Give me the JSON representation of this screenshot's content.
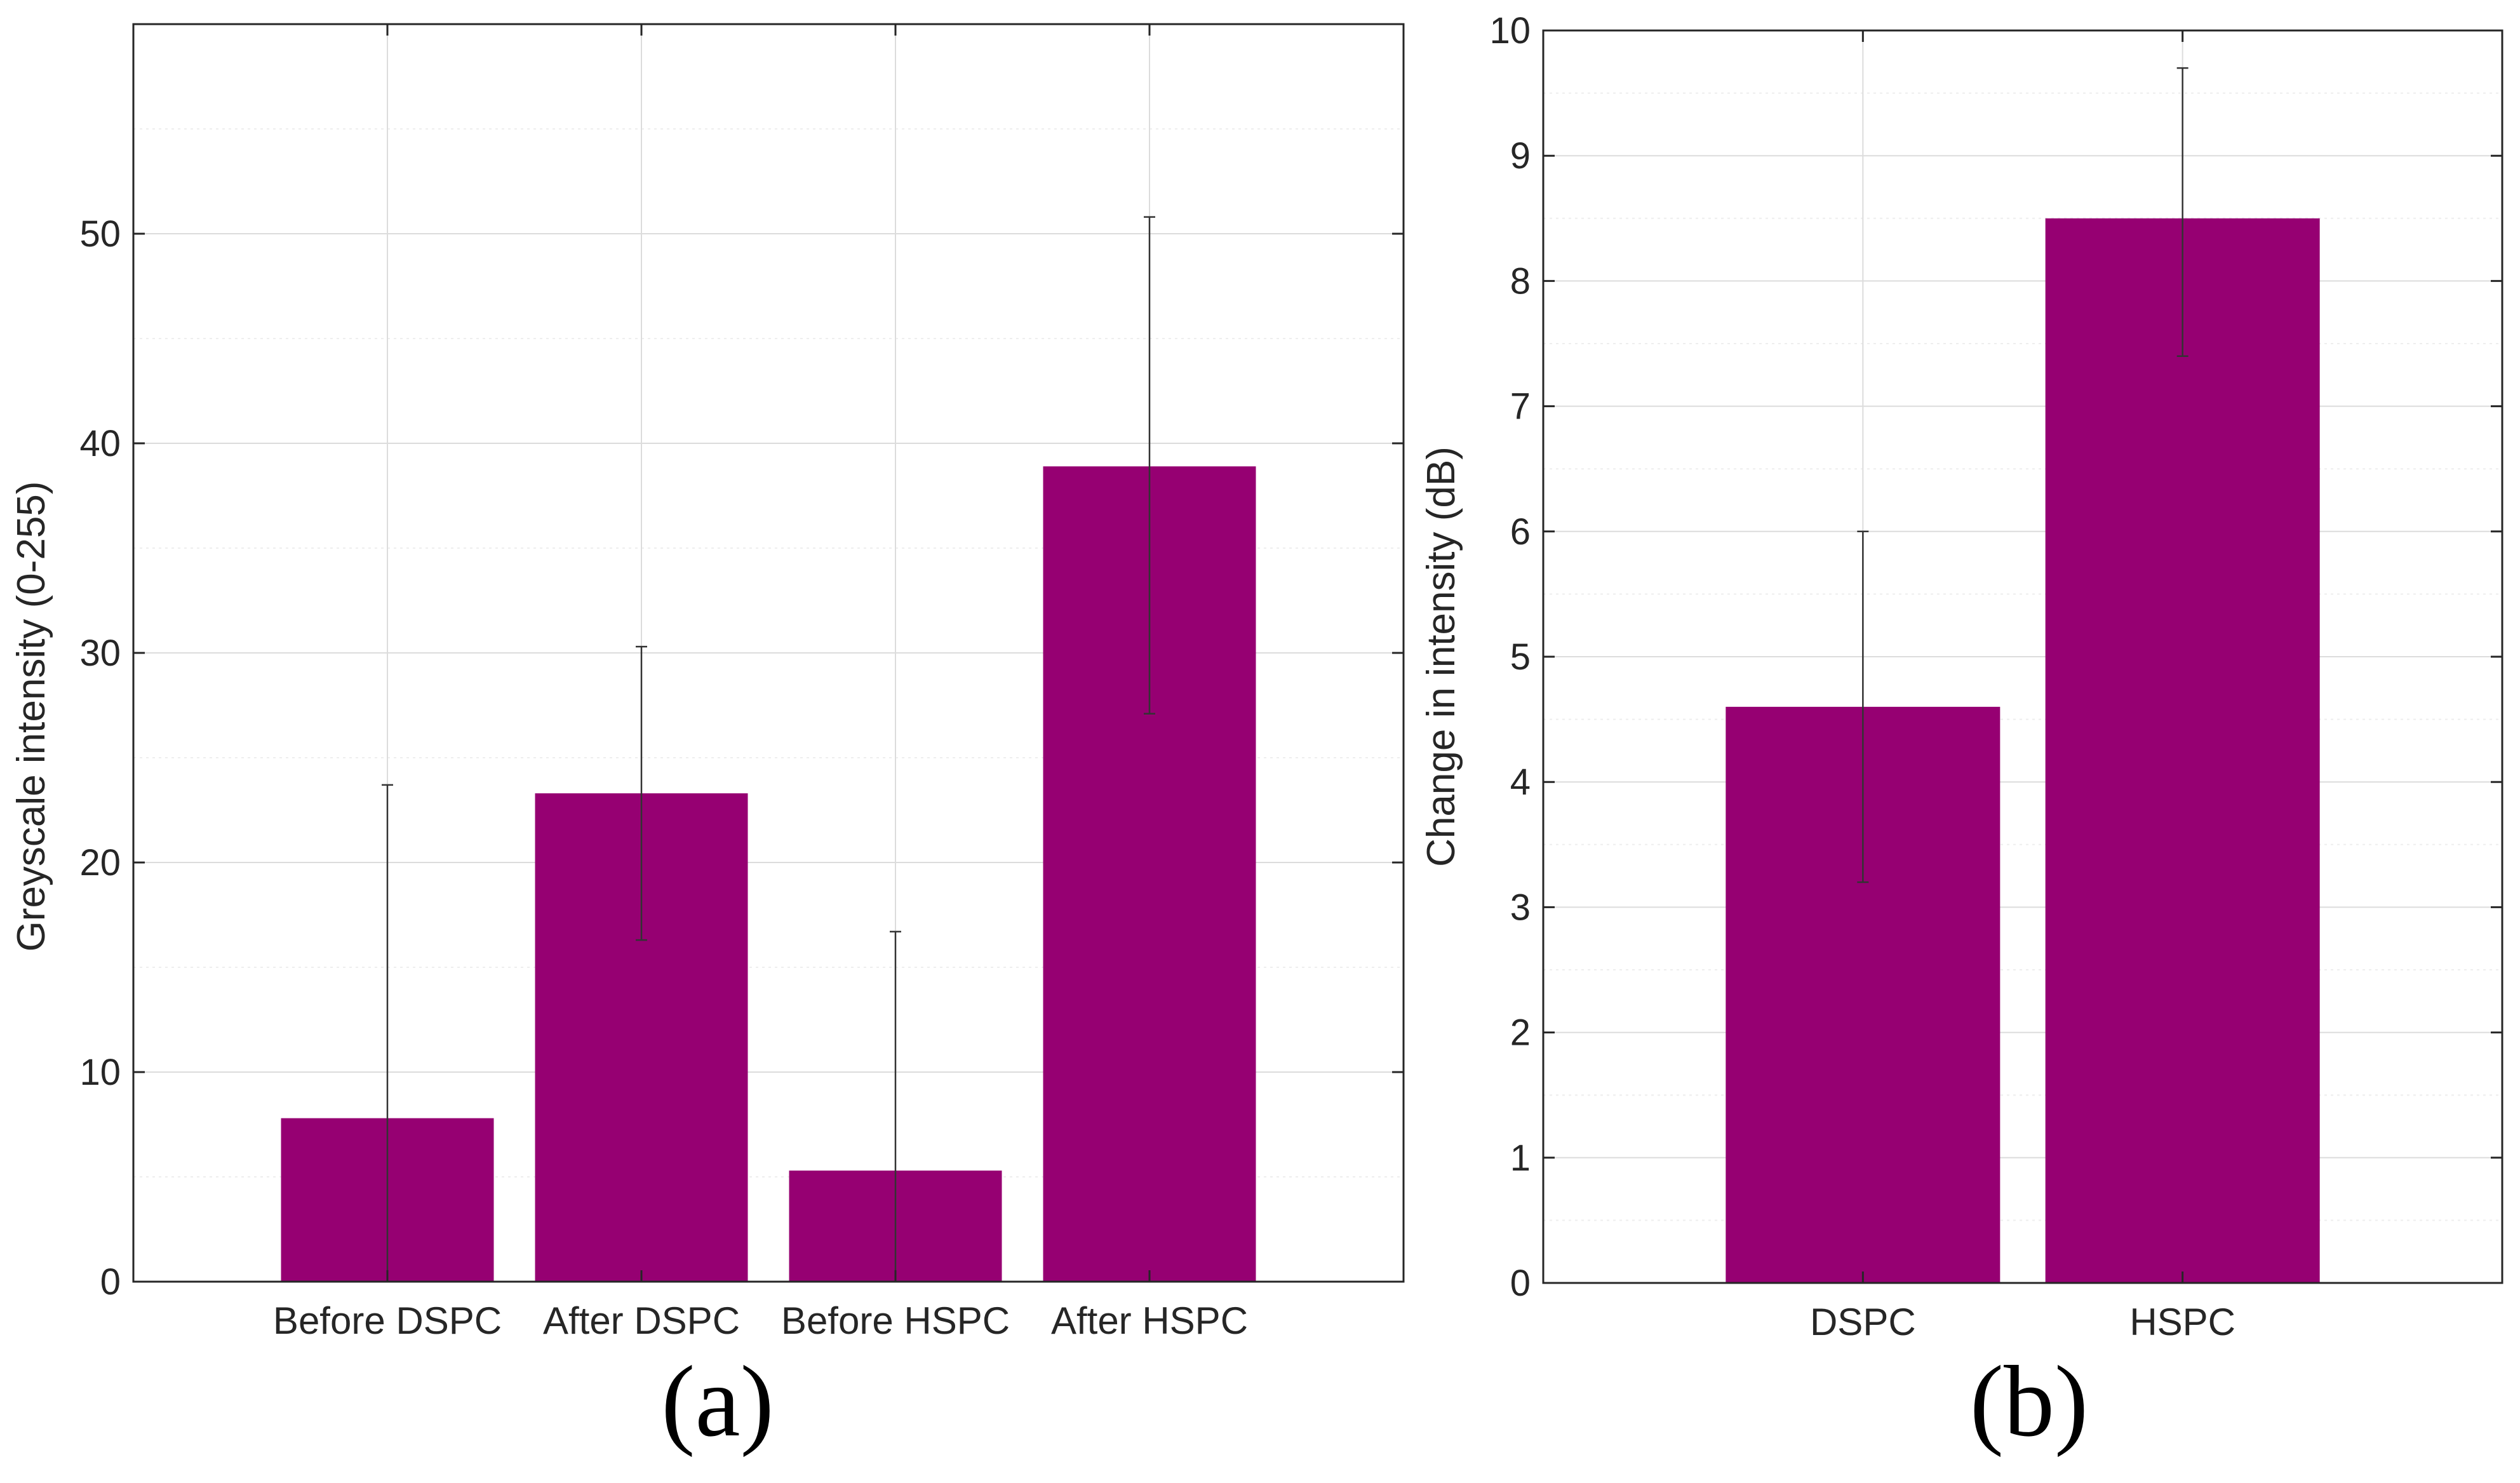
{
  "colors": {
    "bar": "#960072",
    "axis": "#262626",
    "grid": "#dcdcdc",
    "minor_grid": "#eeeeee",
    "error_bar": "#333333"
  },
  "chart_data": [
    {
      "type": "bar",
      "panel_label": "(a)",
      "title": "",
      "xlabel": "",
      "ylabel": "Greyscale intensity (0-255)",
      "categories": [
        "Before DSPC",
        "After DSPC",
        "Before HSPC",
        "After HSPC"
      ],
      "values": [
        7.8,
        23.3,
        5.3,
        38.9
      ],
      "error_upper": [
        23.7,
        30.3,
        16.7,
        50.8
      ],
      "error_lower": [
        0,
        16.3,
        0,
        27.1
      ],
      "ylim": [
        0,
        60
      ],
      "yticks": [
        "0",
        "10",
        "20",
        "30",
        "40",
        "50"
      ],
      "grid": true
    },
    {
      "type": "bar",
      "panel_label": "(b)",
      "title": "",
      "xlabel": "",
      "ylabel": "Change in intensity (dB)",
      "categories": [
        "DSPC",
        "HSPC"
      ],
      "values": [
        4.6,
        8.5
      ],
      "error_upper": [
        6.0,
        9.7
      ],
      "error_lower": [
        3.2,
        7.4
      ],
      "ylim": [
        0,
        10
      ],
      "yticks": [
        "0",
        "1",
        "2",
        "3",
        "4",
        "5",
        "6",
        "7",
        "8",
        "9",
        "10"
      ],
      "grid": true
    }
  ]
}
